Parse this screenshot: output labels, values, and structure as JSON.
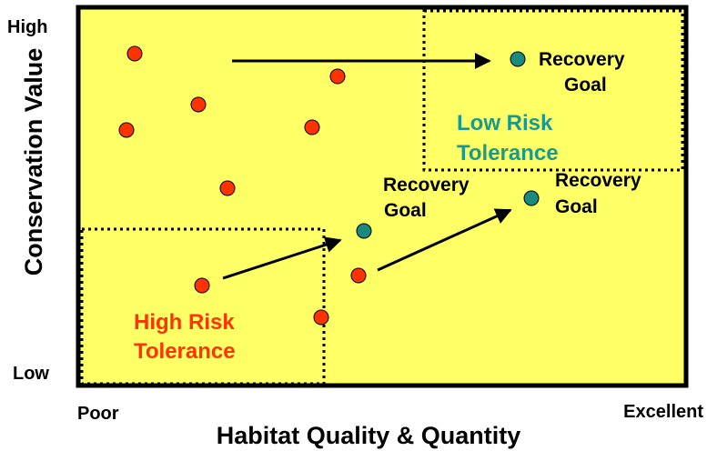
{
  "colors": {
    "background": "#ffff66",
    "border": "#000000",
    "high_risk_text": "#ff3300",
    "low_risk_text": "#1a9a8e",
    "orange_dot": "#ff3300",
    "teal_dot": "#1a8a7e"
  },
  "axes": {
    "y_label": "Conservation Value",
    "y_high": "High",
    "y_low": "Low",
    "x_label": "Habitat Quality & Quantity",
    "x_low": "Poor",
    "x_high": "Excellent"
  },
  "regions": {
    "high_risk": [
      "High Risk",
      "Tolerance"
    ],
    "low_risk": [
      "Low Risk",
      "Tolerance"
    ]
  },
  "recovery_labels": [
    [
      "Recovery",
      "Goal"
    ],
    [
      "Recovery",
      "Goal"
    ],
    [
      "Recovery",
      "Goal"
    ]
  ],
  "legend_icons": {
    "current_site": "orange-circle-icon",
    "goal_site": "teal-circle-icon"
  }
}
